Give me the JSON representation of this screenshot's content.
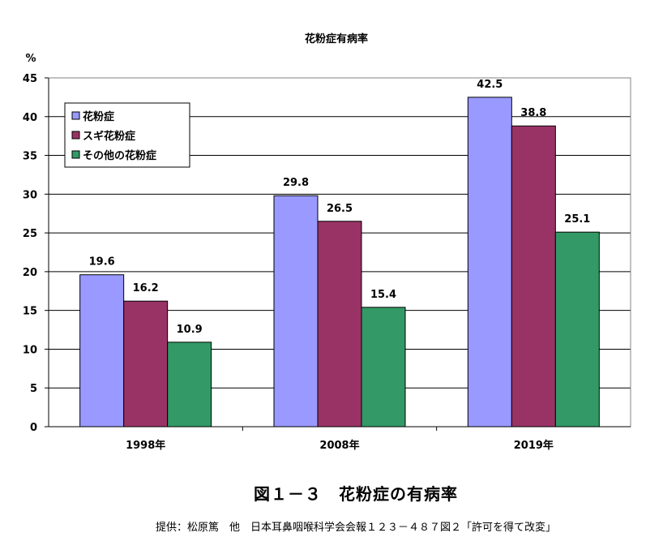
{
  "chart_data": {
    "type": "bar",
    "title": "花粉症有病率",
    "ylabel": "%",
    "xlabel": "",
    "categories": [
      "1998年",
      "2008年",
      "2019年"
    ],
    "ylim": [
      0,
      45
    ],
    "yticks": [
      0,
      5,
      10,
      15,
      20,
      25,
      30,
      35,
      40,
      45
    ],
    "grid": true,
    "legend_position": "top-left",
    "series": [
      {
        "name": "花粉症",
        "values": [
          19.6,
          29.8,
          42.5
        ],
        "color": "#9999ff"
      },
      {
        "name": "スギ花粉症",
        "values": [
          16.2,
          26.5,
          38.8
        ],
        "color": "#993366"
      },
      {
        "name": "その他の花粉症",
        "values": [
          10.9,
          15.4,
          25.1
        ],
        "color": "#339966"
      }
    ]
  },
  "figure_caption": "図１－３　花粉症の有病率",
  "source_note": "提供：松原篤　他　日本耳鼻咽喉科学会会報１２３－４８７図２「許可を得て改変」"
}
